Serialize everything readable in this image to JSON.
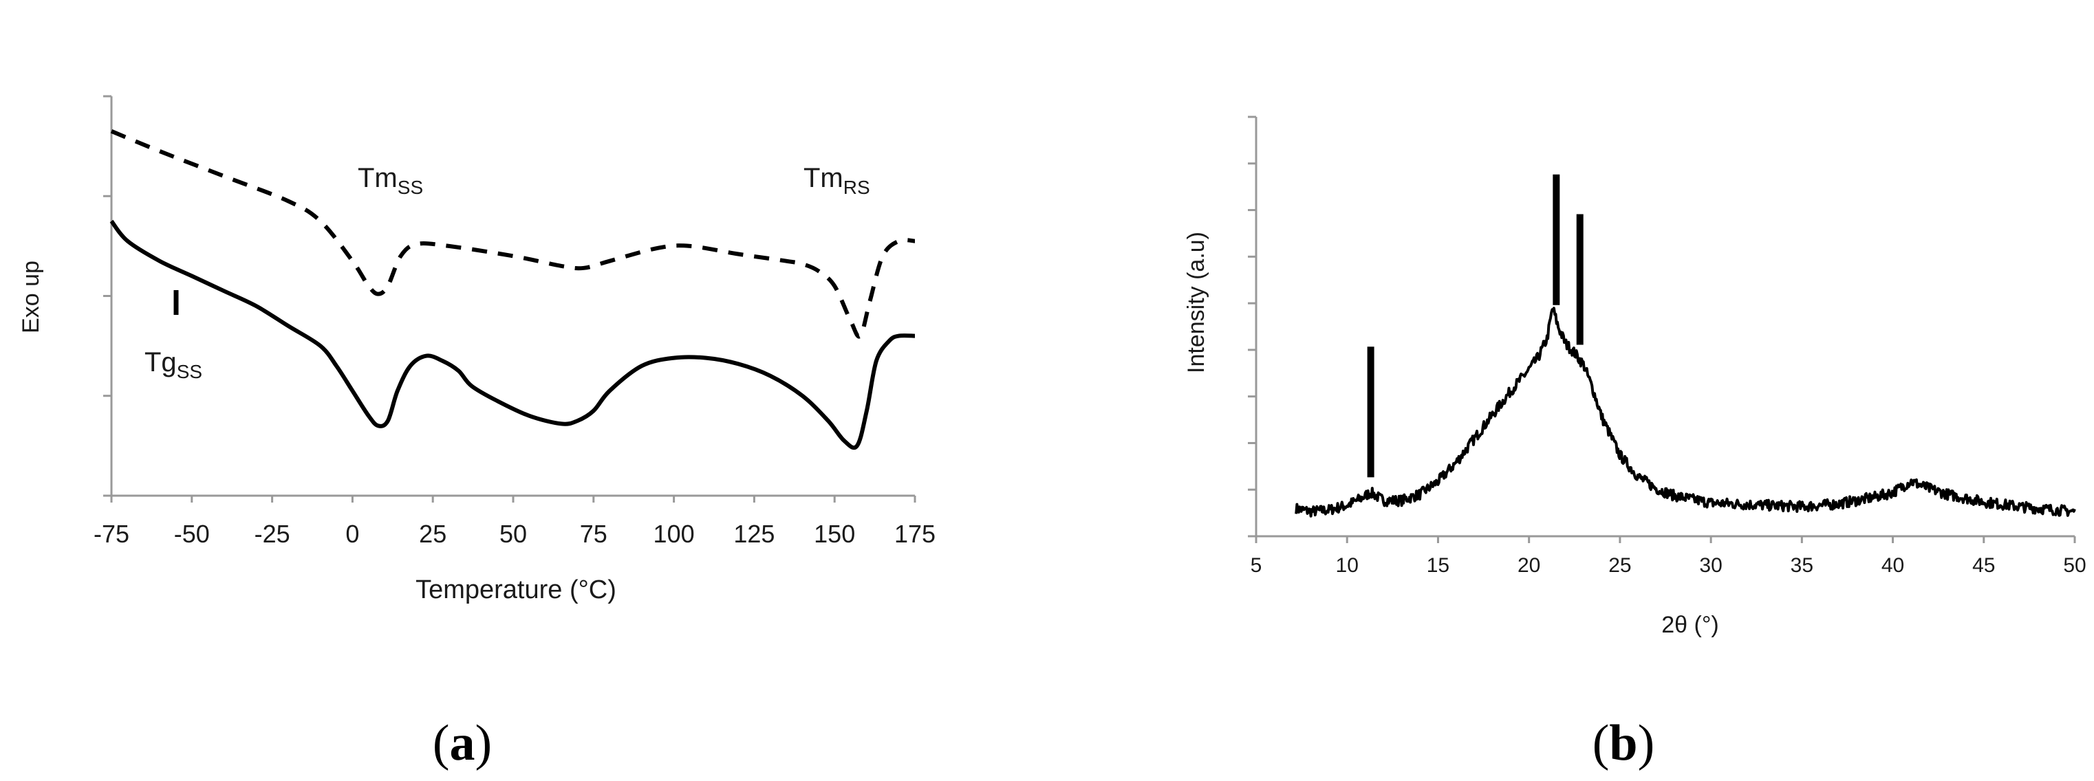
{
  "panels": {
    "a": {
      "label_open": "(",
      "label_letter": "a",
      "label_close": ")"
    },
    "b": {
      "label_open": "(",
      "label_letter": "b",
      "label_close": ")"
    }
  },
  "chart_data": [
    {
      "type": "line",
      "panel": "a",
      "title": "",
      "xlabel": "Temperature (°C)",
      "ylabel": "Exo up",
      "xlim": [
        -75,
        175
      ],
      "x_ticks": [
        "-75",
        "-50",
        "-25",
        "0",
        "25",
        "50",
        "75",
        "100",
        "125",
        "150",
        "175"
      ],
      "y_ticks_count": 5,
      "y_tick_labels": [],
      "grid": false,
      "series": [
        {
          "name": "dashed curve",
          "style": "dashed",
          "x": [
            -75,
            -60,
            -40,
            -20,
            -10,
            0,
            5,
            8,
            11,
            15,
            20,
            30,
            50,
            65,
            72,
            80,
            95,
            105,
            120,
            135,
            140,
            145,
            150,
            155,
            158,
            161,
            165,
            170,
            175
          ],
          "y": [
            3.65,
            3.45,
            3.2,
            2.95,
            2.75,
            2.35,
            2.1,
            2.02,
            2.1,
            2.4,
            2.52,
            2.5,
            2.4,
            2.3,
            2.28,
            2.35,
            2.48,
            2.5,
            2.42,
            2.35,
            2.32,
            2.25,
            2.1,
            1.75,
            1.6,
            1.95,
            2.4,
            2.55,
            2.55
          ]
        },
        {
          "name": "solid curve",
          "style": "solid",
          "x": [
            -75,
            -70,
            -60,
            -50,
            -40,
            -30,
            -20,
            -10,
            -5,
            0,
            5,
            8,
            11,
            14,
            18,
            23,
            28,
            33,
            37,
            45,
            55,
            65,
            70,
            75,
            80,
            90,
            100,
            110,
            120,
            130,
            140,
            148,
            153,
            157,
            160,
            163,
            167,
            170,
            175
          ],
          "y": [
            2.75,
            2.55,
            2.35,
            2.2,
            2.05,
            1.9,
            1.7,
            1.5,
            1.3,
            1.05,
            0.8,
            0.7,
            0.75,
            1.05,
            1.3,
            1.4,
            1.35,
            1.25,
            1.1,
            0.95,
            0.8,
            0.72,
            0.75,
            0.85,
            1.05,
            1.3,
            1.38,
            1.38,
            1.32,
            1.2,
            1.0,
            0.75,
            0.55,
            0.5,
            0.85,
            1.35,
            1.55,
            1.6,
            1.6
          ]
        }
      ],
      "annotations": [
        {
          "id": "tm_ss",
          "text": "Tm",
          "sub": "SS",
          "x": 8,
          "kind": "label"
        },
        {
          "id": "tm_rs",
          "text": "Tm",
          "sub": "RS",
          "x": 152,
          "kind": "label"
        },
        {
          "id": "tg_ss",
          "text": "Tg",
          "sub": "SS",
          "x": -56,
          "kind": "label-with-marker"
        }
      ]
    },
    {
      "type": "line",
      "panel": "b",
      "title": "",
      "xlabel": "2θ (°)",
      "ylabel": "Intensity (a.u)",
      "xlim": [
        5,
        50
      ],
      "x_ticks": [
        "5",
        "10",
        "15",
        "20",
        "25",
        "30",
        "35",
        "40",
        "45",
        "50"
      ],
      "y_ticks_count": 10,
      "y_tick_labels": [],
      "grid": false,
      "series": [
        {
          "name": "XRD pattern",
          "style": "solid-noisy",
          "x": [
            7.2,
            8,
            9,
            10,
            10.8,
            11.3,
            12,
            13,
            14,
            15,
            16,
            17,
            18,
            19,
            20,
            20.5,
            21,
            21.3,
            21.6,
            22,
            22.5,
            23,
            23.5,
            24,
            25,
            26,
            27,
            28,
            30,
            33,
            35,
            37,
            39,
            40,
            41,
            42,
            43,
            45,
            47,
            49,
            50
          ],
          "y": [
            0.38,
            0.32,
            0.35,
            0.45,
            0.6,
            0.72,
            0.55,
            0.55,
            0.68,
            0.95,
            1.35,
            1.85,
            2.35,
            2.85,
            3.3,
            3.55,
            3.95,
            4.6,
            4.2,
            3.85,
            3.65,
            3.4,
            2.9,
            2.3,
            1.5,
            1.05,
            0.8,
            0.65,
            0.5,
            0.45,
            0.42,
            0.48,
            0.62,
            0.72,
            0.95,
            0.8,
            0.68,
            0.52,
            0.42,
            0.35,
            0.32
          ]
        }
      ],
      "peak_markers_x": [
        11.3,
        21.5,
        22.8
      ],
      "annotations": []
    }
  ]
}
